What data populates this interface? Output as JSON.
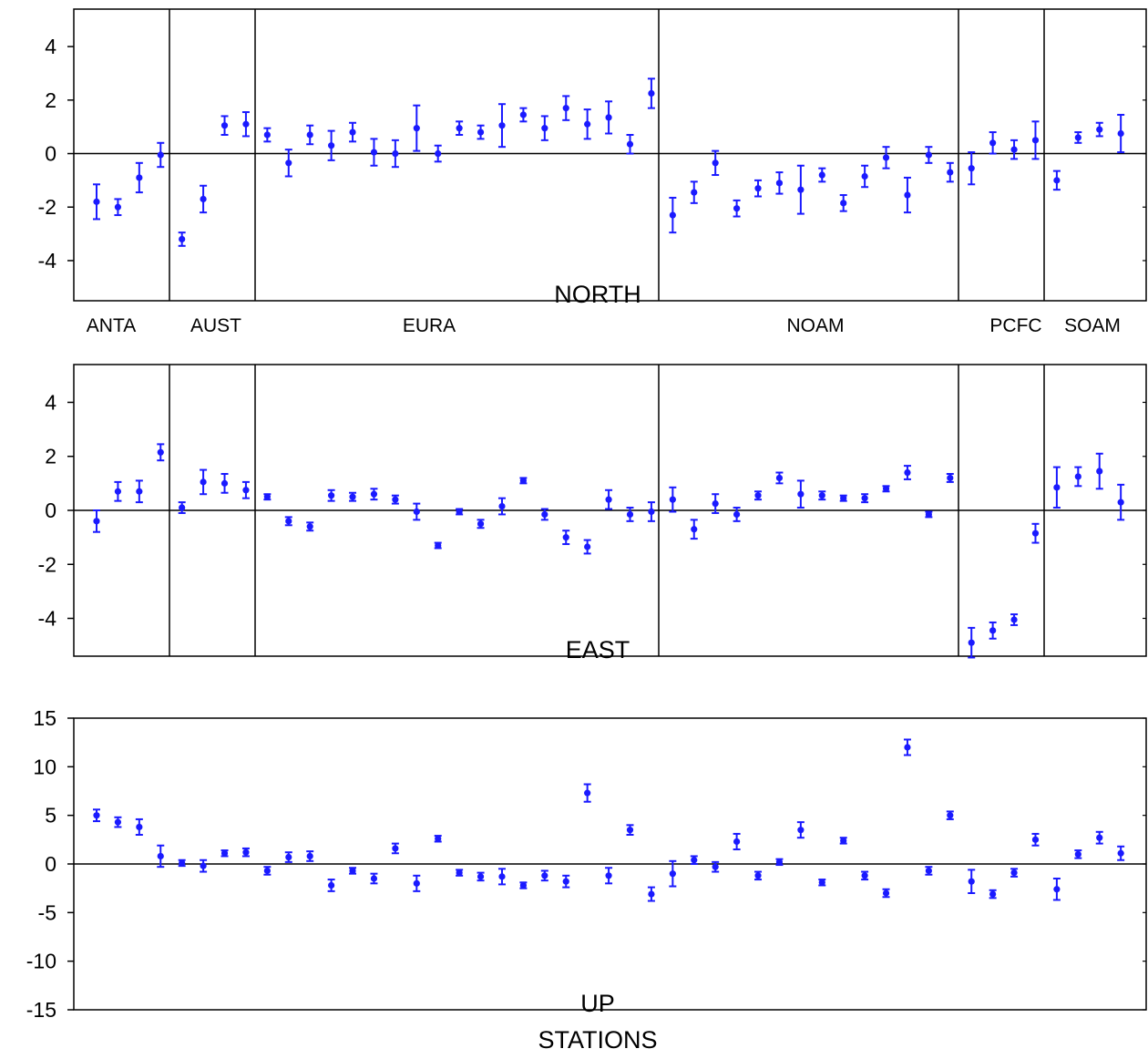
{
  "chart_data": [
    {
      "type": "scatter",
      "panel_label": "NORTH",
      "ylim": [
        -5.5,
        5.4
      ],
      "yticks": [
        "4",
        "2",
        "0",
        "-2",
        "-4"
      ],
      "ytick_values": [
        4,
        2,
        0,
        -2,
        -4
      ],
      "group_labels": [
        "ANTA",
        "AUST",
        "EURA",
        "NOAM",
        "PCFC",
        "SOAM"
      ],
      "y": [
        -1.8,
        -2.0,
        -0.9,
        -0.05,
        -3.2,
        -1.7,
        1.05,
        1.1,
        0.7,
        -0.35,
        0.7,
        0.3,
        0.8,
        0.05,
        0.0,
        0.95,
        0.0,
        0.95,
        0.8,
        1.05,
        1.45,
        0.95,
        1.7,
        1.1,
        1.35,
        0.35,
        2.25,
        -2.3,
        -1.45,
        -0.35,
        -2.05,
        -1.3,
        -1.1,
        -1.35,
        -0.8,
        -1.85,
        -0.85,
        -0.15,
        -1.55,
        -0.05,
        -0.7,
        -0.55,
        0.4,
        0.15,
        0.5,
        -1.0,
        0.6,
        0.9,
        0.75
      ],
      "err": [
        0.65,
        0.3,
        0.55,
        0.45,
        0.25,
        0.5,
        0.35,
        0.45,
        0.25,
        0.5,
        0.35,
        0.55,
        0.35,
        0.5,
        0.5,
        0.85,
        0.3,
        0.25,
        0.25,
        0.8,
        0.25,
        0.45,
        0.45,
        0.55,
        0.6,
        0.35,
        0.55,
        0.65,
        0.4,
        0.45,
        0.3,
        0.3,
        0.4,
        0.9,
        0.25,
        0.3,
        0.4,
        0.4,
        0.65,
        0.3,
        0.35,
        0.6,
        0.4,
        0.35,
        0.7,
        0.35,
        0.2,
        0.25,
        0.7
      ]
    },
    {
      "type": "scatter",
      "panel_label": "EAST",
      "ylim": [
        -5.4,
        5.4
      ],
      "yticks": [
        "4",
        "2",
        "0",
        "-2",
        "-4"
      ],
      "ytick_values": [
        4,
        2,
        0,
        -2,
        -4
      ],
      "y": [
        -0.4,
        0.7,
        0.7,
        2.15,
        0.1,
        1.05,
        1.0,
        0.75,
        0.5,
        -0.4,
        -0.6,
        0.55,
        0.5,
        0.6,
        0.4,
        -0.05,
        -1.3,
        -0.05,
        -0.5,
        0.15,
        1.1,
        -0.15,
        -1.0,
        -1.35,
        0.4,
        -0.15,
        -0.05,
        0.4,
        -0.7,
        0.25,
        -0.15,
        0.55,
        1.2,
        0.6,
        0.55,
        0.45,
        0.45,
        0.8,
        1.4,
        -0.15,
        1.2,
        -4.9,
        -4.45,
        -4.05,
        -0.85,
        0.85,
        1.25,
        1.45,
        0.3
      ],
      "err": [
        0.4,
        0.35,
        0.4,
        0.3,
        0.2,
        0.45,
        0.35,
        0.3,
        0.1,
        0.15,
        0.15,
        0.2,
        0.15,
        0.2,
        0.15,
        0.3,
        0.1,
        0.1,
        0.15,
        0.3,
        0.1,
        0.2,
        0.25,
        0.25,
        0.35,
        0.25,
        0.35,
        0.45,
        0.35,
        0.35,
        0.25,
        0.15,
        0.2,
        0.5,
        0.15,
        0.1,
        0.15,
        0.1,
        0.25,
        0.1,
        0.15,
        0.55,
        0.3,
        0.2,
        0.35,
        0.75,
        0.35,
        0.65,
        0.65
      ]
    },
    {
      "type": "scatter",
      "panel_label": "UP",
      "ylim": [
        -15,
        15
      ],
      "yticks": [
        "15",
        "10",
        "5",
        "0",
        "-5",
        "-10",
        "-15"
      ],
      "ytick_values": [
        15,
        10,
        5,
        0,
        -5,
        -10,
        -15
      ],
      "y": [
        5.0,
        4.3,
        3.8,
        0.8,
        0.1,
        -0.2,
        1.1,
        1.2,
        -0.7,
        0.7,
        0.8,
        -2.2,
        -0.7,
        -1.5,
        1.6,
        -2.0,
        2.6,
        -0.9,
        -1.3,
        -1.3,
        -2.2,
        -1.2,
        -1.8,
        7.3,
        -1.2,
        3.5,
        -3.1,
        -1.0,
        0.4,
        -0.3,
        2.3,
        -1.2,
        0.2,
        3.5,
        -1.9,
        2.4,
        -1.2,
        -3.0,
        12.0,
        -0.7,
        5.0,
        -1.8,
        -3.1,
        -0.9,
        2.5,
        -2.6,
        1.0,
        2.7,
        1.1
      ],
      "err": [
        0.6,
        0.5,
        0.8,
        1.1,
        0.3,
        0.6,
        0.3,
        0.4,
        0.4,
        0.5,
        0.5,
        0.6,
        0.3,
        0.5,
        0.5,
        0.8,
        0.3,
        0.3,
        0.4,
        0.8,
        0.3,
        0.5,
        0.6,
        0.9,
        0.8,
        0.5,
        0.7,
        1.3,
        0.4,
        0.5,
        0.8,
        0.4,
        0.3,
        0.8,
        0.3,
        0.3,
        0.4,
        0.4,
        0.8,
        0.4,
        0.4,
        1.2,
        0.4,
        0.4,
        0.6,
        1.1,
        0.4,
        0.6,
        0.7
      ]
    }
  ],
  "xlabel": "STATIONS",
  "colors": {
    "points": "#1a1aff",
    "axes": "#000000"
  }
}
